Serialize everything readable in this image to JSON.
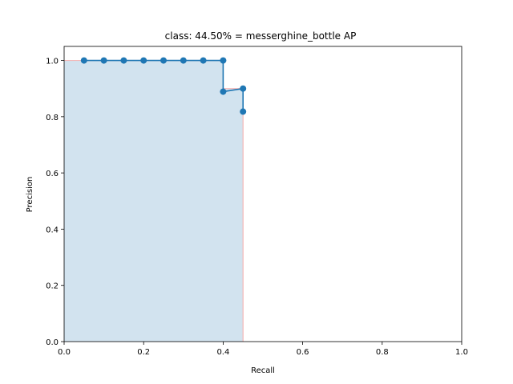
{
  "chart_data": {
    "type": "area",
    "title": "class: 44.50% = messerghine_bottle AP",
    "xlabel": "Recall",
    "ylabel": "Precision",
    "xlim": [
      0.0,
      1.0
    ],
    "ylim": [
      0.0,
      1.05
    ],
    "xticks": [
      0.0,
      0.2,
      0.4,
      0.6,
      0.8,
      1.0
    ],
    "yticks": [
      0.0,
      0.2,
      0.4,
      0.6,
      0.8,
      1.0
    ],
    "xtick_labels": [
      "0.0",
      "0.2",
      "0.4",
      "0.6",
      "0.8",
      "1.0"
    ],
    "ytick_labels": [
      "0.0",
      "0.2",
      "0.4",
      "0.6",
      "0.8",
      "1.0"
    ],
    "grid": false,
    "series": [
      {
        "style": "line-with-markers",
        "color": "#1f77b4",
        "x": [
          0.05,
          0.1,
          0.15,
          0.2,
          0.25,
          0.3,
          0.35,
          0.4,
          0.4,
          0.45,
          0.45
        ],
        "y": [
          1.0,
          1.0,
          1.0,
          1.0,
          1.0,
          1.0,
          1.0,
          1.0,
          0.889,
          0.9,
          0.818
        ]
      },
      {
        "style": "filled-area",
        "color": "#d2e3ef",
        "edge_color": "#f4b6b6",
        "x": [
          0.0,
          0.4,
          0.4,
          0.45,
          0.45
        ],
        "y": [
          1.0,
          1.0,
          0.9,
          0.9,
          0.0
        ]
      }
    ]
  }
}
